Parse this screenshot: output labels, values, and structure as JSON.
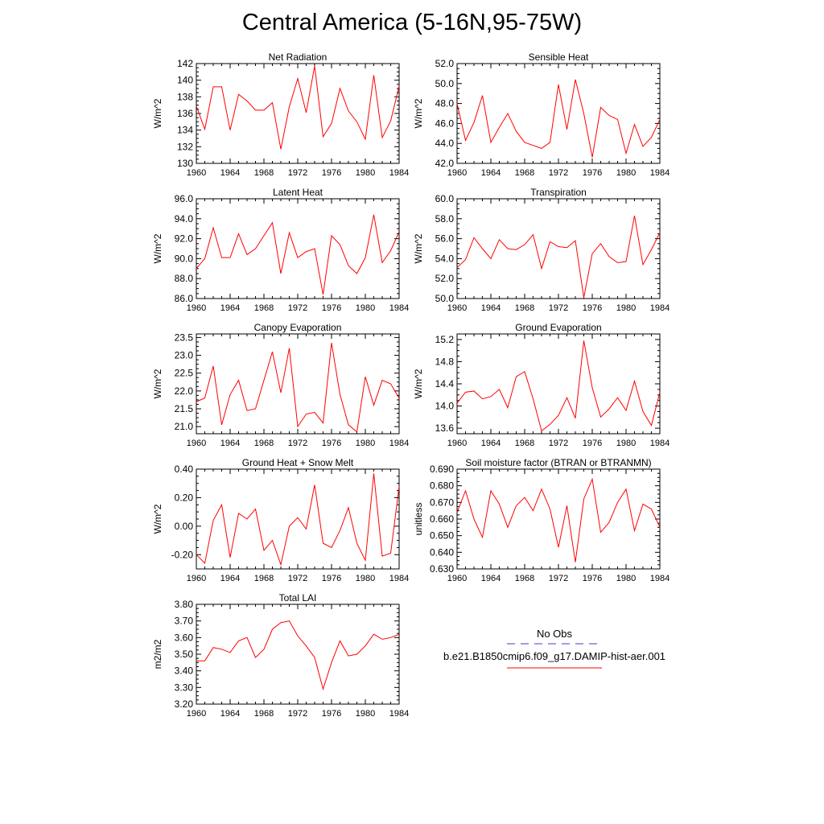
{
  "page_title": "Central America (5-16N,95-75W)",
  "line_color": "#ff0000",
  "obs_line_color": "#3b3bd6",
  "legend": {
    "obs_label": "No Obs",
    "model_label": "b.e21.B1850cmip6.f09_g17.DAMIP-hist-aer.001"
  },
  "chart_data": [
    {
      "type": "line",
      "title": "Net Radiation",
      "ylabel": "W/m^2",
      "ylim": [
        130,
        142
      ],
      "yticks": [
        "130",
        "132",
        "134",
        "136",
        "138",
        "140",
        "142"
      ],
      "xlim": [
        1960,
        1984
      ],
      "xticks": [
        "1960",
        "1964",
        "1968",
        "1972",
        "1976",
        "1980",
        "1984"
      ],
      "series": [
        {
          "x": [
            1960,
            1961,
            1962,
            1963,
            1964,
            1965,
            1966,
            1967,
            1968,
            1969,
            1970,
            1971,
            1972,
            1973,
            1974,
            1975,
            1976,
            1977,
            1978,
            1979,
            1980,
            1981,
            1982,
            1983,
            1984
          ],
          "values": [
            136.9,
            134.1,
            139.2,
            139.2,
            134.0,
            138.3,
            137.5,
            136.4,
            136.4,
            137.3,
            131.7,
            136.8,
            140.2,
            136.1,
            141.7,
            133.2,
            134.8,
            139.0,
            136.3,
            135.0,
            132.9,
            140.6,
            133.1,
            135.1,
            139.3
          ]
        }
      ]
    },
    {
      "type": "line",
      "title": "Sensible Heat",
      "ylabel": "W/m^2",
      "ylim": [
        42,
        52
      ],
      "yticks": [
        "42.0",
        "44.0",
        "46.0",
        "48.0",
        "50.0",
        "52.0"
      ],
      "xlim": [
        1960,
        1984
      ],
      "xticks": [
        "1960",
        "1964",
        "1968",
        "1972",
        "1976",
        "1980",
        "1984"
      ],
      "series": [
        {
          "x": [
            1960,
            1961,
            1962,
            1963,
            1964,
            1965,
            1966,
            1967,
            1968,
            1969,
            1970,
            1971,
            1972,
            1973,
            1974,
            1975,
            1976,
            1977,
            1978,
            1979,
            1980,
            1981,
            1982,
            1983,
            1984
          ],
          "values": [
            48.0,
            44.3,
            46.1,
            48.8,
            44.1,
            45.6,
            47.0,
            45.2,
            44.1,
            43.8,
            43.5,
            44.1,
            49.9,
            45.4,
            50.4,
            47.0,
            42.6,
            47.6,
            46.8,
            46.4,
            43.0,
            45.9,
            43.7,
            44.6,
            46.4
          ]
        }
      ]
    },
    {
      "type": "line",
      "title": "Latent Heat",
      "ylabel": "W/m^2",
      "ylim": [
        86,
        96
      ],
      "yticks": [
        "86.0",
        "88.0",
        "90.0",
        "92.0",
        "94.0",
        "96.0"
      ],
      "xlim": [
        1960,
        1984
      ],
      "xticks": [
        "1960",
        "1964",
        "1968",
        "1972",
        "1976",
        "1980",
        "1984"
      ],
      "series": [
        {
          "x": [
            1960,
            1961,
            1962,
            1963,
            1964,
            1965,
            1966,
            1967,
            1968,
            1969,
            1970,
            1971,
            1972,
            1973,
            1974,
            1975,
            1976,
            1977,
            1978,
            1979,
            1980,
            1981,
            1982,
            1983,
            1984
          ],
          "values": [
            89.0,
            90.0,
            93.1,
            90.1,
            90.1,
            92.5,
            90.4,
            91.0,
            92.3,
            93.6,
            88.5,
            92.6,
            90.1,
            90.7,
            91.0,
            86.4,
            92.3,
            91.4,
            89.3,
            88.5,
            90.1,
            94.4,
            89.6,
            90.8,
            92.7
          ]
        }
      ]
    },
    {
      "type": "line",
      "title": "Transpiration",
      "ylabel": "W/m^2",
      "ylim": [
        50,
        60
      ],
      "yticks": [
        "50.0",
        "52.0",
        "54.0",
        "56.0",
        "58.0",
        "60.0"
      ],
      "xlim": [
        1960,
        1984
      ],
      "xticks": [
        "1960",
        "1964",
        "1968",
        "1972",
        "1976",
        "1980",
        "1984"
      ],
      "series": [
        {
          "x": [
            1960,
            1961,
            1962,
            1963,
            1964,
            1965,
            1966,
            1967,
            1968,
            1969,
            1970,
            1971,
            1972,
            1973,
            1974,
            1975,
            1976,
            1977,
            1978,
            1979,
            1980,
            1981,
            1982,
            1983,
            1984
          ],
          "values": [
            53.1,
            53.9,
            56.1,
            55.0,
            54.0,
            55.9,
            55.0,
            54.9,
            55.4,
            56.4,
            53.0,
            55.7,
            55.2,
            55.1,
            55.8,
            50.1,
            54.5,
            55.5,
            54.2,
            53.6,
            53.7,
            58.3,
            53.4,
            54.9,
            56.6
          ]
        }
      ]
    },
    {
      "type": "line",
      "title": "Canopy Evaporation",
      "ylabel": "W/m^2",
      "ylim": [
        20.8,
        23.6
      ],
      "yticks": [
        "21.0",
        "21.5",
        "22.0",
        "22.5",
        "23.0",
        "23.5"
      ],
      "ytick_values": [
        21.0,
        21.5,
        22.0,
        22.5,
        23.0,
        23.5
      ],
      "xlim": [
        1960,
        1984
      ],
      "xticks": [
        "1960",
        "1964",
        "1968",
        "1972",
        "1976",
        "1980",
        "1984"
      ],
      "series": [
        {
          "x": [
            1960,
            1961,
            1962,
            1963,
            1964,
            1965,
            1966,
            1967,
            1968,
            1969,
            1970,
            1971,
            1972,
            1973,
            1974,
            1975,
            1976,
            1977,
            1978,
            1979,
            1980,
            1981,
            1982,
            1983,
            1984
          ],
          "values": [
            21.7,
            21.8,
            22.7,
            21.05,
            21.9,
            22.3,
            21.45,
            21.5,
            22.3,
            23.1,
            21.95,
            23.2,
            21.0,
            21.35,
            21.4,
            21.1,
            23.35,
            21.9,
            21.05,
            20.85,
            22.4,
            21.6,
            22.3,
            22.2,
            21.8
          ]
        }
      ]
    },
    {
      "type": "line",
      "title": "Ground Evaporation",
      "ylabel": "W/m^2",
      "ylim": [
        13.5,
        15.3
      ],
      "yticks": [
        "13.6",
        "14.0",
        "14.4",
        "14.8",
        "15.2"
      ],
      "ytick_values": [
        13.6,
        14.0,
        14.4,
        14.8,
        15.2
      ],
      "xlim": [
        1960,
        1984
      ],
      "xticks": [
        "1960",
        "1964",
        "1968",
        "1972",
        "1976",
        "1980",
        "1984"
      ],
      "series": [
        {
          "x": [
            1960,
            1961,
            1962,
            1963,
            1964,
            1965,
            1966,
            1967,
            1968,
            1969,
            1970,
            1971,
            1972,
            1973,
            1974,
            1975,
            1976,
            1977,
            1978,
            1979,
            1980,
            1981,
            1982,
            1983,
            1984
          ],
          "values": [
            14.05,
            14.25,
            14.27,
            14.13,
            14.17,
            14.3,
            13.97,
            14.53,
            14.62,
            14.13,
            13.55,
            13.67,
            13.83,
            14.15,
            13.78,
            15.18,
            14.33,
            13.8,
            13.95,
            14.15,
            13.92,
            14.45,
            13.9,
            13.65,
            14.25
          ]
        }
      ]
    },
    {
      "type": "line",
      "title": "Ground Heat + Snow Melt",
      "ylabel": "W/m^2",
      "ylim": [
        -0.3,
        0.4
      ],
      "yticks": [
        "-0.20",
        "0.00",
        "0.20",
        "0.40"
      ],
      "ytick_values": [
        -0.2,
        0.0,
        0.2,
        0.4
      ],
      "xlim": [
        1960,
        1984
      ],
      "xticks": [
        "1960",
        "1964",
        "1968",
        "1972",
        "1976",
        "1980",
        "1984"
      ],
      "series": [
        {
          "x": [
            1960,
            1961,
            1962,
            1963,
            1964,
            1965,
            1966,
            1967,
            1968,
            1969,
            1970,
            1971,
            1972,
            1973,
            1974,
            1975,
            1976,
            1977,
            1978,
            1979,
            1980,
            1981,
            1982,
            1983,
            1984
          ],
          "values": [
            -0.2,
            -0.26,
            0.04,
            0.15,
            -0.22,
            0.09,
            0.05,
            0.12,
            -0.17,
            -0.1,
            -0.27,
            0.0,
            0.06,
            -0.02,
            0.29,
            -0.12,
            -0.15,
            -0.03,
            0.13,
            -0.12,
            -0.24,
            0.37,
            -0.21,
            -0.19,
            0.28
          ]
        }
      ]
    },
    {
      "type": "line",
      "title": "Soil moisture factor (BTRAN or BTRANMN)",
      "ylabel": "unitless",
      "ylim": [
        0.63,
        0.69
      ],
      "yticks": [
        "0.630",
        "0.640",
        "0.650",
        "0.660",
        "0.670",
        "0.680",
        "0.690"
      ],
      "xlim": [
        1960,
        1984
      ],
      "xticks": [
        "1960",
        "1964",
        "1968",
        "1972",
        "1976",
        "1980",
        "1984"
      ],
      "series": [
        {
          "x": [
            1960,
            1961,
            1962,
            1963,
            1964,
            1965,
            1966,
            1967,
            1968,
            1969,
            1970,
            1971,
            1972,
            1973,
            1974,
            1975,
            1976,
            1977,
            1978,
            1979,
            1980,
            1981,
            1982,
            1983,
            1984
          ],
          "values": [
            0.664,
            0.677,
            0.66,
            0.649,
            0.677,
            0.669,
            0.655,
            0.668,
            0.673,
            0.665,
            0.678,
            0.666,
            0.643,
            0.668,
            0.634,
            0.672,
            0.684,
            0.652,
            0.658,
            0.67,
            0.678,
            0.653,
            0.669,
            0.666,
            0.655
          ]
        }
      ]
    },
    {
      "type": "line",
      "title": "Total LAI",
      "ylabel": "m2/m2",
      "ylim": [
        3.2,
        3.8
      ],
      "yticks": [
        "3.20",
        "3.30",
        "3.40",
        "3.50",
        "3.60",
        "3.70",
        "3.80"
      ],
      "xlim": [
        1960,
        1984
      ],
      "xticks": [
        "1960",
        "1964",
        "1968",
        "1972",
        "1976",
        "1980",
        "1984"
      ],
      "series": [
        {
          "x": [
            1960,
            1961,
            1962,
            1963,
            1964,
            1965,
            1966,
            1967,
            1968,
            1969,
            1970,
            1971,
            1972,
            1973,
            1974,
            1975,
            1976,
            1977,
            1978,
            1979,
            1980,
            1981,
            1982,
            1983,
            1984
          ],
          "values": [
            3.46,
            3.46,
            3.54,
            3.53,
            3.51,
            3.58,
            3.6,
            3.48,
            3.53,
            3.65,
            3.69,
            3.7,
            3.61,
            3.55,
            3.48,
            3.29,
            3.45,
            3.58,
            3.49,
            3.5,
            3.55,
            3.62,
            3.59,
            3.6,
            3.62
          ]
        }
      ]
    }
  ]
}
